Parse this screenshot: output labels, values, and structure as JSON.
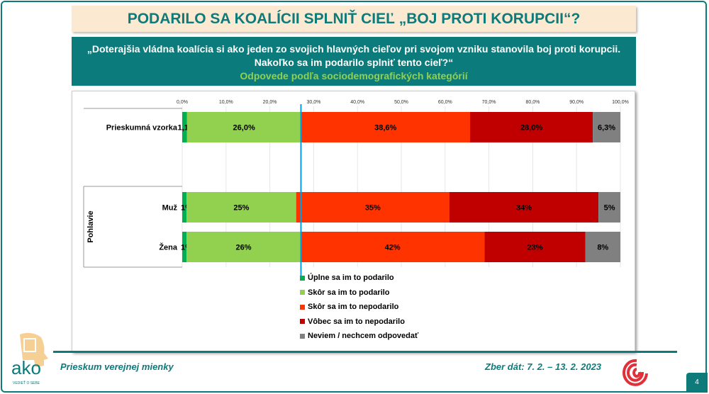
{
  "title": "PODARILO SA KOALÍCII SPLNIŤ CIEĽ „BOJ PROTI KORUPCII“?",
  "question": {
    "line1": "„Doterajšia vládna koalícia si ako jeden zo svojich hlavných cieľov pri svojom vzniku stanovila boj proti korupcii.",
    "line2": "Nakoľko sa im podarilo splniť tento cieľ?“",
    "line3": "Odpovede podľa sociodemografických kategórií"
  },
  "chart_data": {
    "type": "bar",
    "orientation": "horizontal",
    "stacked": true,
    "xlim": [
      0,
      100
    ],
    "ticks": [
      "0,0%",
      "10,0%",
      "20,0%",
      "30,0%",
      "40,0%",
      "50,0%",
      "60,0%",
      "70,0%",
      "80,0%",
      "90,0%",
      "100,0%"
    ],
    "group_label": "Pohlavie",
    "reference_line_value": 27.1,
    "legend_position": "bottom",
    "series": [
      {
        "name": "Úplne sa im to podarilo",
        "color": "#00b050"
      },
      {
        "name": "Skôr sa im to podarilo",
        "color": "#92d050"
      },
      {
        "name": "Skôr sa im to nepodarilo",
        "color": "#ff3300"
      },
      {
        "name": "Vôbec sa im to nepodarilo",
        "color": "#c00000"
      },
      {
        "name": "Neviem / nechcem odpovedať",
        "color": "#808080"
      }
    ],
    "rows": [
      {
        "label": "Prieskumná vzorka",
        "values": [
          1.1,
          26.0,
          38.6,
          28.0,
          6.3
        ],
        "labels": [
          "1,1%",
          "26,0%",
          "38,6%",
          "28,0%",
          "6,3%"
        ]
      },
      {
        "label": "Muž",
        "values": [
          1,
          25,
          35,
          34,
          5
        ],
        "labels": [
          "1%",
          "25%",
          "35%",
          "34%",
          "5%"
        ]
      },
      {
        "label": "Žena",
        "values": [
          1,
          26,
          42,
          23,
          8
        ],
        "labels": [
          "1%",
          "26%",
          "42%",
          "23%",
          "8%"
        ]
      }
    ]
  },
  "footer": {
    "survey": "Prieskum verejnej mienky",
    "dates": "Zber dát: 7. 2. – 13. 2. 2023",
    "page": "4",
    "logo_text": "ako",
    "logo_tagline": "VEDIEŤ O SEBE"
  }
}
